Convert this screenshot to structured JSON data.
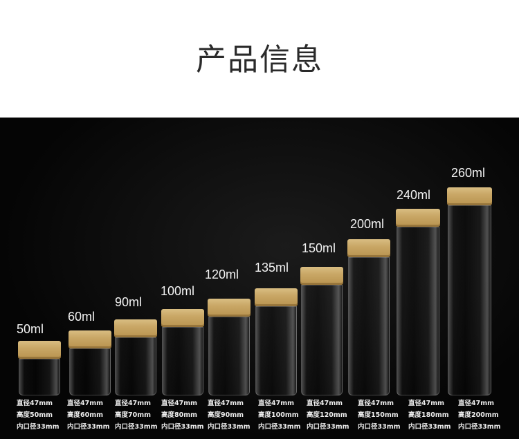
{
  "title": "产品信息",
  "colors": {
    "background": "#000000",
    "cap": "#c9a766"
  },
  "products": [
    {
      "capacity": "50ml",
      "diameter": "直径47mm",
      "height": "高度50mm",
      "inner": "内口径33mm"
    },
    {
      "capacity": "60ml",
      "diameter": "直径47mm",
      "height": "高度60mm",
      "inner": "内口径33mm"
    },
    {
      "capacity": "90ml",
      "diameter": "直径47mm",
      "height": "高度70mm",
      "inner": "内口径33mm"
    },
    {
      "capacity": "100ml",
      "diameter": "直径47mm",
      "height": "高度80mm",
      "inner": "内口径33mm"
    },
    {
      "capacity": "120ml",
      "diameter": "直径47mm",
      "height": "高度90mm",
      "inner": "内口径33mm"
    },
    {
      "capacity": "135ml",
      "diameter": "直径47mm",
      "height": "高度100mm",
      "inner": "内口径33mm"
    },
    {
      "capacity": "150ml",
      "diameter": "直径47mm",
      "height": "高度120mm",
      "inner": "内口径33mm"
    },
    {
      "capacity": "200ml",
      "diameter": "直径47mm",
      "height": "高度150mm",
      "inner": "内口径33mm"
    },
    {
      "capacity": "240ml",
      "diameter": "直径47mm",
      "height": "高度180mm",
      "inner": "内口径33mm"
    },
    {
      "capacity": "260ml",
      "diameter": "直径47mm",
      "height": "高度200mm",
      "inner": "内口径33mm"
    }
  ]
}
